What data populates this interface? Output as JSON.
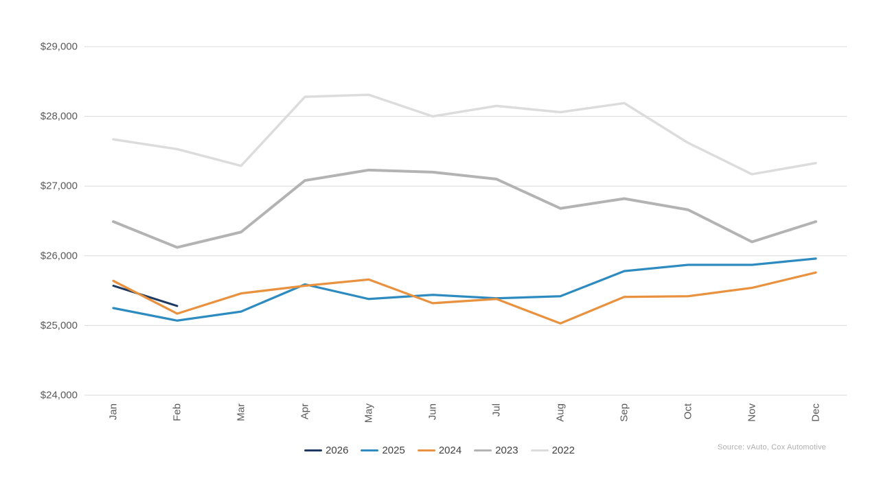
{
  "source_note": "Source: vAuto, Cox Automotive",
  "colors": {
    "background": "#ffffff",
    "gridline": "#d9d9d9",
    "axis_label": "#595959",
    "legend_text": "#404040",
    "source_text": "#aeaeae"
  },
  "chart_data": {
    "type": "line",
    "title": "",
    "xlabel": "",
    "ylabel": "",
    "categories": [
      "Jan",
      "Feb",
      "Mar",
      "Apr",
      "May",
      "Jun",
      "Jul",
      "Aug",
      "Sep",
      "Oct",
      "Nov",
      "Dec"
    ],
    "series": [
      {
        "name": "2026",
        "color": "#1f3a60",
        "width": 3,
        "values": [
          25570,
          25280,
          null,
          null,
          null,
          null,
          null,
          null,
          null,
          null,
          null,
          null
        ]
      },
      {
        "name": "2025",
        "color": "#2e8bc0",
        "width": 3.25,
        "values": [
          25250,
          25070,
          25200,
          25590,
          25380,
          25440,
          25390,
          25420,
          25780,
          25870,
          25870,
          25960
        ]
      },
      {
        "name": "2024",
        "color": "#e8913f",
        "width": 3.25,
        "values": [
          25640,
          25170,
          25460,
          25570,
          25660,
          25320,
          25380,
          25030,
          25410,
          25420,
          25540,
          25760
        ]
      },
      {
        "name": "2023",
        "color": "#b3b3b3",
        "width": 4,
        "values": [
          26490,
          26120,
          26340,
          27080,
          27230,
          27200,
          27100,
          26680,
          26820,
          26660,
          26200,
          26490
        ]
      },
      {
        "name": "2022",
        "color": "#dcdcdc",
        "width": 3.5,
        "values": [
          27670,
          27530,
          27290,
          28280,
          28310,
          28000,
          28150,
          28060,
          28190,
          27620,
          27170,
          27330
        ]
      }
    ],
    "yticks": [
      24000,
      25000,
      26000,
      27000,
      28000,
      29000
    ],
    "ytick_labels": [
      "$24,000",
      "$25,000",
      "$26,000",
      "$27,000",
      "$28,000",
      "$29,000"
    ],
    "ylim": [
      24000,
      29000
    ],
    "grid": true,
    "x_labels_rotated": true,
    "legend_position": "bottom"
  }
}
